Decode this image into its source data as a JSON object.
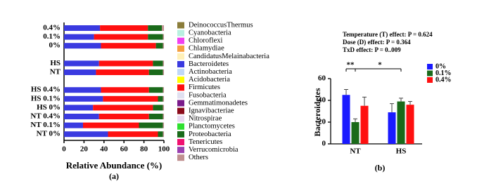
{
  "chart_data": [
    {
      "type": "stacked-barh",
      "x_label": "Relative Abundance (%)",
      "caption": "(a)",
      "categories": [
        "0.4%",
        "0.1%",
        "0%",
        null,
        "HS",
        "NT",
        null,
        "HS 0.4%",
        "HS 0.1%",
        "HS 0%",
        "NT 0.4%",
        "NT 0.1%",
        "NT 0%"
      ],
      "xlim": [
        0,
        100
      ],
      "xticks": [
        0,
        20,
        40,
        60,
        80,
        100
      ],
      "series": [
        {
          "name": "DeinococcusThermus",
          "color": "#8b7d3a",
          "values": [
            0,
            0,
            0,
            null,
            0,
            0,
            null,
            0,
            0,
            0,
            0,
            0,
            0
          ]
        },
        {
          "name": "Cyanobacteria",
          "color": "#b8f0e0",
          "values": [
            0,
            0,
            0,
            null,
            0,
            0,
            null,
            0,
            0,
            0,
            0,
            0,
            0
          ]
        },
        {
          "name": "Chloroflexi",
          "color": "#f040f0",
          "values": [
            0,
            0,
            0,
            null,
            0,
            0,
            null,
            0,
            0,
            0,
            0,
            0,
            0
          ]
        },
        {
          "name": "Chlamydiae",
          "color": "#f5a040",
          "values": [
            0,
            0,
            0,
            null,
            0,
            0,
            null,
            0,
            0,
            0,
            0,
            0,
            0
          ]
        },
        {
          "name": "CandidatusMelainabacteria",
          "color": "#fff0b8",
          "values": [
            0,
            0,
            0,
            null,
            0,
            0,
            null,
            0,
            0,
            0,
            0,
            0,
            0
          ]
        },
        {
          "name": "Bacteroidetes",
          "color": "#3a3ae0",
          "values": [
            36,
            30,
            37,
            null,
            35,
            32,
            null,
            37,
            39,
            29,
            35,
            19,
            44
          ]
        },
        {
          "name": "Actinobacteria",
          "color": "#c0d8f8",
          "values": [
            0,
            0,
            0,
            null,
            0,
            0,
            null,
            0,
            0,
            0,
            0,
            0,
            0
          ]
        },
        {
          "name": "Acidobacteria",
          "color": "#ffff00",
          "values": [
            0,
            0,
            0,
            null,
            0,
            0,
            null,
            0,
            0,
            0,
            0,
            0,
            0
          ]
        },
        {
          "name": "Firmicutes",
          "color": "#ff1010",
          "values": [
            48,
            54,
            55,
            null,
            54,
            53,
            null,
            48,
            55,
            60,
            50,
            56,
            50
          ]
        },
        {
          "name": "Fusobacteria",
          "color": "#e0e0f0",
          "values": [
            0,
            0,
            0,
            null,
            0,
            0,
            null,
            0,
            0,
            0,
            0,
            0,
            0
          ]
        },
        {
          "name": "Gemmatimonadetes",
          "color": "#7a1a8a",
          "values": [
            0,
            0,
            0,
            null,
            0,
            0,
            null,
            0,
            0,
            0,
            0,
            0,
            0
          ]
        },
        {
          "name": "Ignavibacteriae",
          "color": "#8b0a1a",
          "values": [
            0,
            0,
            0,
            null,
            0,
            0,
            null,
            0,
            0,
            0,
            0,
            0,
            0
          ]
        },
        {
          "name": "Nitrospirae",
          "color": "#e8d8f0",
          "values": [
            0,
            0,
            0,
            null,
            0,
            0,
            null,
            0,
            0,
            0,
            0,
            0,
            0
          ]
        },
        {
          "name": "Planctomycetes",
          "color": "#30e030",
          "values": [
            0,
            0,
            0,
            null,
            0,
            0,
            null,
            0,
            0,
            0,
            0,
            0,
            0
          ]
        },
        {
          "name": "Proteobacteria",
          "color": "#1a6a1a",
          "values": [
            14,
            15,
            7,
            null,
            10,
            14,
            null,
            14,
            5,
            10,
            14,
            24,
            5
          ]
        },
        {
          "name": "Tenericutes",
          "color": "#f01070",
          "values": [
            0,
            0,
            0,
            null,
            0,
            0,
            null,
            0,
            0,
            0,
            0,
            0,
            0
          ]
        },
        {
          "name": "Verrucomicrobia",
          "color": "#9a40b0",
          "values": [
            0,
            0,
            0,
            null,
            0,
            0,
            null,
            0,
            0,
            0,
            0,
            0,
            0
          ]
        },
        {
          "name": "Others",
          "color": "#c09090",
          "values": [
            2,
            1,
            1,
            null,
            1,
            1,
            null,
            1,
            1,
            1,
            1,
            1,
            1
          ]
        }
      ]
    },
    {
      "type": "bar",
      "y_label": "Bacteroidetes",
      "caption": "(b)",
      "annotations": [
        "Temperature (T) effect: P = 0.624",
        "Dose (D) effect: P = 0.364",
        "TxD effect: P = 0..009",
        "**",
        "*"
      ],
      "categories": [
        "NT",
        "HS"
      ],
      "ylim": [
        0,
        60
      ],
      "yticks": [
        0,
        20,
        40,
        60
      ],
      "series": [
        {
          "name": "0%",
          "color": "#1a1aff",
          "values": [
            45,
            29
          ],
          "errors": [
            5,
            8
          ]
        },
        {
          "name": "0.1%",
          "color": "#1a6a1a",
          "values": [
            20,
            39
          ],
          "errors": [
            3,
            3
          ]
        },
        {
          "name": "0.4%",
          "color": "#ff1010",
          "values": [
            35,
            36
          ],
          "errors": [
            8,
            3
          ]
        }
      ]
    }
  ]
}
